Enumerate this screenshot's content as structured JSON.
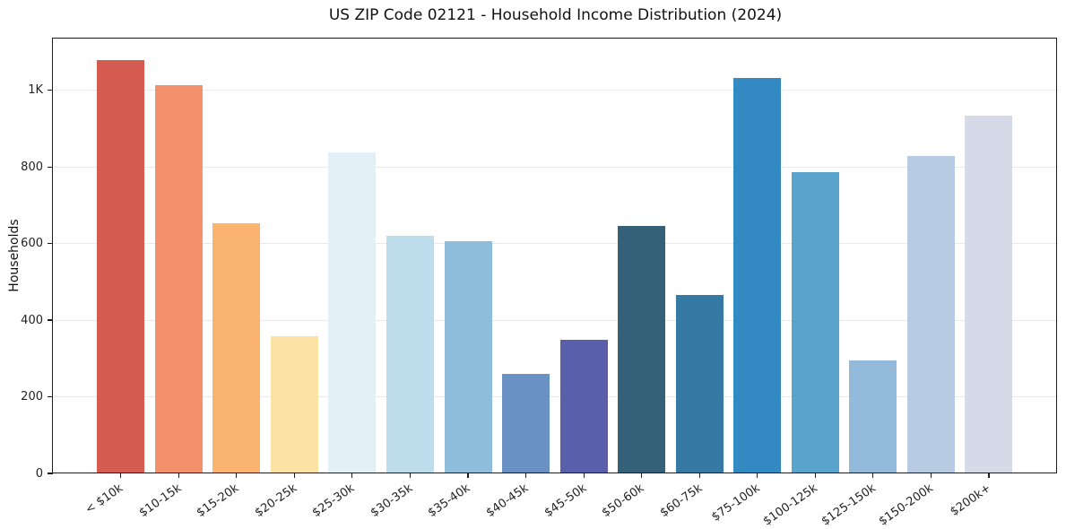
{
  "chart_data": {
    "type": "bar",
    "title": "US ZIP Code 02121 - Household Income Distribution (2024)",
    "xlabel": "",
    "ylabel": "Households",
    "categories": [
      "< $10k",
      "$10-15k",
      "$15-20k",
      "$20-25k",
      "$25-30k",
      "$30-35k",
      "$35-40k",
      "$40-45k",
      "$45-50k",
      "$50-60k",
      "$60-75k",
      "$75-100k",
      "$100-125k",
      "$125-150k",
      "$150-200k",
      "$200k+"
    ],
    "values": [
      1080,
      1013,
      652,
      358,
      837,
      620,
      605,
      260,
      349,
      645,
      466,
      1032,
      786,
      294,
      828,
      933
    ],
    "bar_colors": [
      "#d65b51",
      "#f3916c",
      "#fab46f",
      "#fde2a6",
      "#e4f0f8",
      "#bddcec",
      "#8fbedd",
      "#6a91c4",
      "#5a5fab",
      "#35607a",
      "#3779a5",
      "#338ac2",
      "#5aa3cc",
      "#93bada",
      "#b7cbe2",
      "#d6d9e8"
    ],
    "yticks": [
      {
        "value": 0,
        "label": "0"
      },
      {
        "value": 200,
        "label": "200"
      },
      {
        "value": 400,
        "label": "400"
      },
      {
        "value": 600,
        "label": "600"
      },
      {
        "value": 800,
        "label": "800"
      },
      {
        "value": 1000,
        "label": "1K"
      }
    ],
    "ylim": [
      0,
      1135
    ],
    "grid": "horizontal",
    "legend": "none",
    "background": "#ffffff"
  }
}
